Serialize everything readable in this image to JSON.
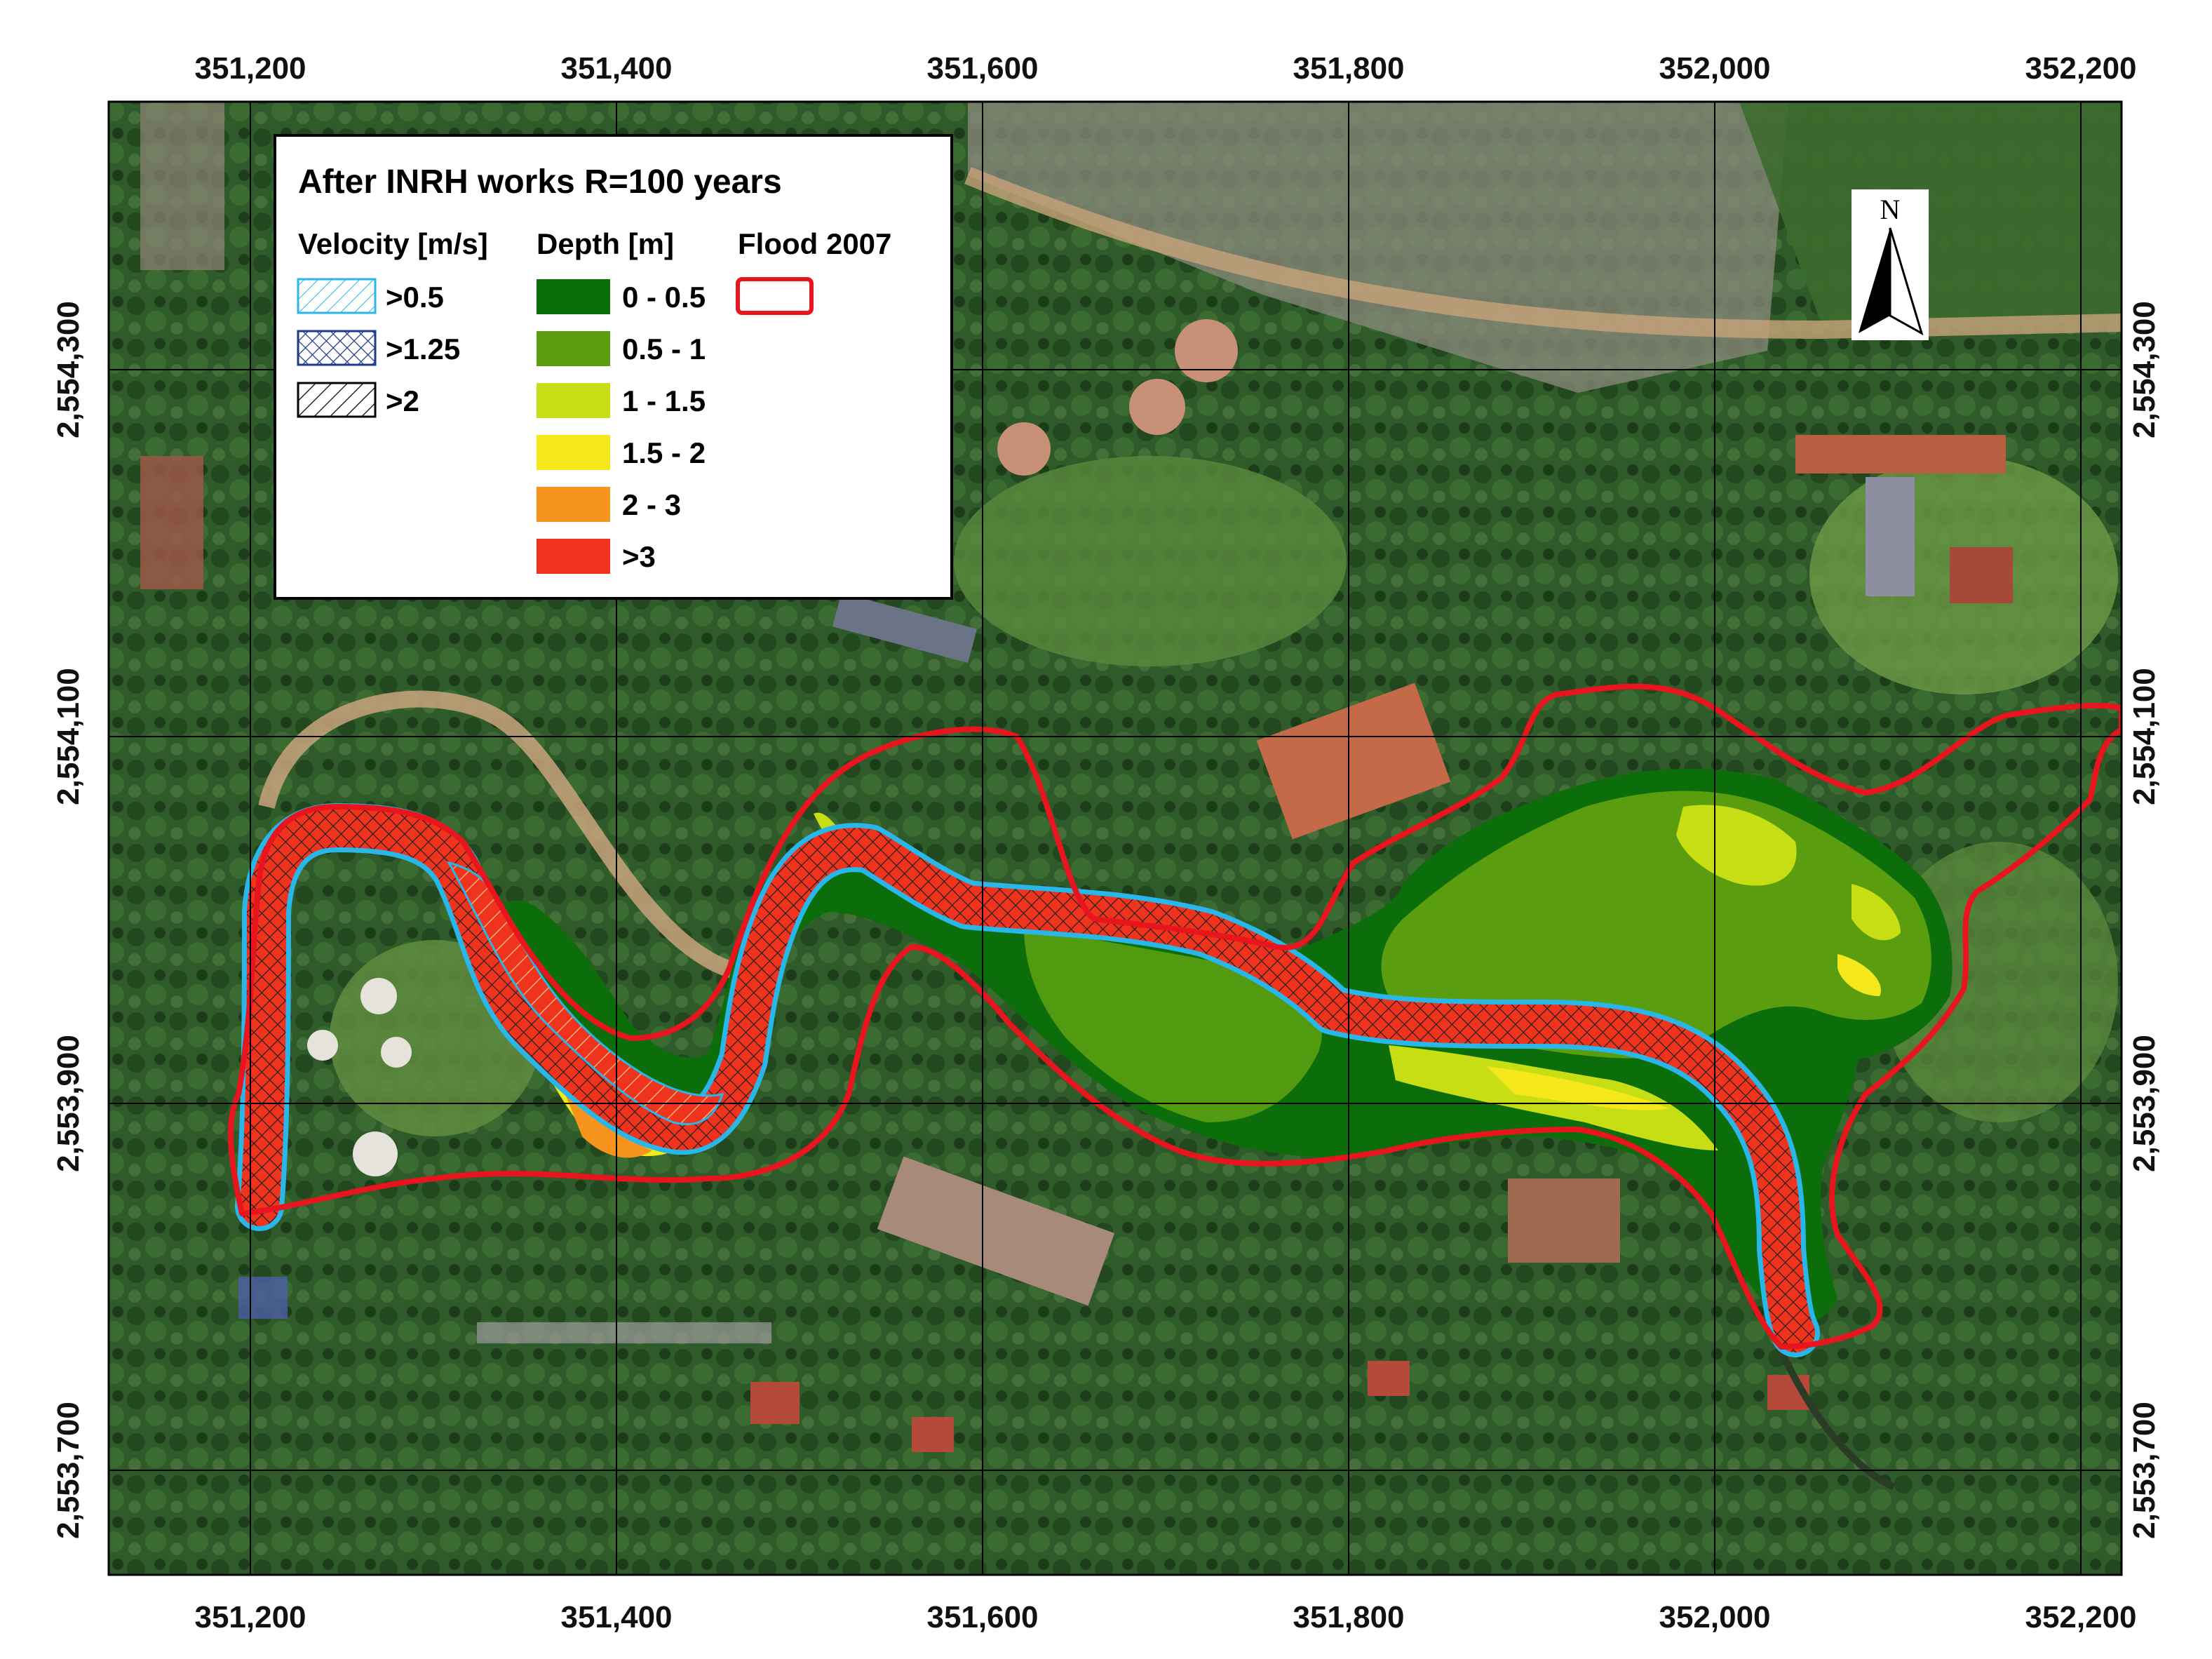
{
  "legend": {
    "title": "After INRH works R=100 years",
    "velocity_heading": "Velocity [m/s]",
    "depth_heading": "Depth [m]",
    "flood_heading": "Flood 2007",
    "velocity_items": [
      {
        "label": ">0.5",
        "color": "#29b6e8",
        "pattern": "fine-diagonal"
      },
      {
        "label": ">1.25",
        "color": "#1f3a8a",
        "pattern": "crosshatch"
      },
      {
        "label": ">2",
        "color": "#000000",
        "pattern": "diagonal"
      }
    ],
    "depth_items": [
      {
        "label": "0 - 0.5",
        "color": "#0b6e0b"
      },
      {
        "label": "0.5 - 1",
        "color": "#5a9e10"
      },
      {
        "label": "1 - 1.5",
        "color": "#c8de14"
      },
      {
        "label": "1.5 - 2",
        "color": "#f5e81a"
      },
      {
        "label": "2 - 3",
        "color": "#f7941d"
      },
      {
        "label": ">3",
        "color": "#f0331c"
      }
    ],
    "flood_color": "#e8141e"
  },
  "north_arrow": {
    "label": "N"
  },
  "axes": {
    "x_ticks": [
      "351,200",
      "351,400",
      "351,600",
      "351,800",
      "352,000",
      "352,200"
    ],
    "y_ticks": [
      "2,554,300",
      "2,554,100",
      "2,553,900",
      "2,553,700"
    ]
  }
}
